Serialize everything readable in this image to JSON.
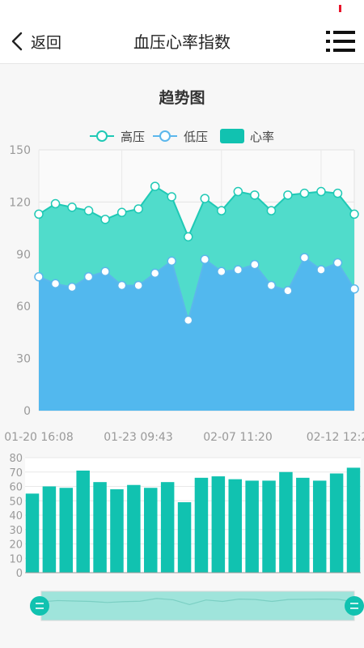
{
  "header": {
    "back_label": "返回",
    "title": "血压心率指数"
  },
  "colors": {
    "systolic_line": "#1fc9b5",
    "systolic_fill": "#50dccb",
    "diastolic_line": "#5bb7ec",
    "diastolic_fill": "#52b8ee",
    "heart_rate_bar": "#11c2b0",
    "status_mark": "#e8142a"
  },
  "chart_data": [
    {
      "type": "area",
      "title": "趋势图",
      "legend": [
        "高压",
        "低压",
        "心率"
      ],
      "legend_position": "top-center",
      "x": [
        "01-20 16:08",
        "",
        "",
        "",
        "",
        "01-23 09:43",
        "",
        "",
        "",
        "",
        "",
        "02-07 11:20",
        "",
        "",
        "",
        "",
        "",
        "02-12 12:2",
        "",
        ""
      ],
      "x_tick_labels": [
        "01-20 16:08",
        "01-23 09:43",
        "02-07 11:20",
        "02-12 12:2"
      ],
      "y_ticks": [
        0,
        30,
        60,
        90,
        120,
        150
      ],
      "ylim": [
        0,
        150
      ],
      "grid": true,
      "series": [
        {
          "name": "高压",
          "values": [
            113,
            119,
            117,
            115,
            110,
            114,
            116,
            129,
            123,
            100,
            122,
            115,
            126,
            124,
            115,
            124,
            125,
            126,
            125,
            113
          ]
        },
        {
          "name": "低压",
          "values": [
            77,
            73,
            71,
            77,
            80,
            72,
            72,
            79,
            86,
            52,
            87,
            80,
            81,
            84,
            72,
            69,
            88,
            81,
            85,
            70
          ]
        }
      ]
    },
    {
      "type": "bar",
      "series_name": "心率",
      "ylim": [
        0,
        80
      ],
      "y_ticks": [
        0,
        10,
        20,
        30,
        40,
        50,
        60,
        70,
        80
      ],
      "values": [
        55,
        60,
        59,
        71,
        63,
        58,
        61,
        59,
        63,
        49,
        66,
        67,
        65,
        64,
        64,
        70,
        66,
        64,
        69,
        73
      ]
    }
  ]
}
